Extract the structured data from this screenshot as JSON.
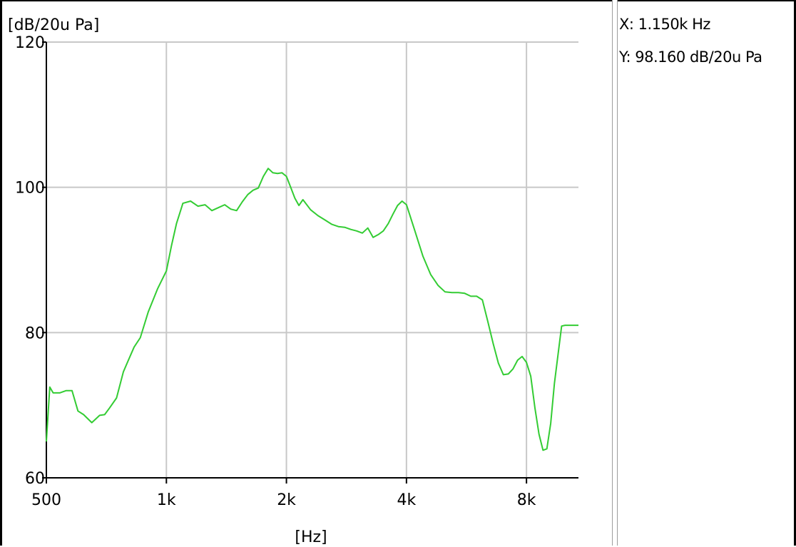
{
  "readout": {
    "x_text": "X: 1.150k Hz",
    "y_text": "Y: 98.160 dB/20u Pa"
  },
  "chart_data": {
    "type": "line",
    "title": "",
    "xlabel": "[Hz]",
    "ylabel": "[dB/20u Pa]",
    "xscale": "log",
    "xlim": [
      500,
      10800
    ],
    "ylim": [
      60,
      120
    ],
    "grid": true,
    "line_color": "#33cc33",
    "grid_color": "#c8c8c8",
    "xticks": [
      {
        "value": 500,
        "label": "500"
      },
      {
        "value": 1000,
        "label": "1k"
      },
      {
        "value": 2000,
        "label": "2k"
      },
      {
        "value": 4000,
        "label": "4k"
      },
      {
        "value": 8000,
        "label": "8k"
      }
    ],
    "yticks": [
      {
        "value": 60,
        "label": "60"
      },
      {
        "value": 80,
        "label": "80"
      },
      {
        "value": 100,
        "label": "100"
      },
      {
        "value": 120,
        "label": "120"
      }
    ],
    "series": [
      {
        "x": [
          500,
          510,
          520,
          540,
          560,
          580,
          600,
          620,
          650,
          680,
          700,
          720,
          750,
          780,
          800,
          830,
          860,
          900,
          950,
          1000,
          1030,
          1060,
          1100,
          1150,
          1200,
          1250,
          1300,
          1350,
          1400,
          1450,
          1500,
          1550,
          1600,
          1650,
          1700,
          1750,
          1800,
          1850,
          1900,
          1950,
          2000,
          2050,
          2100,
          2150,
          2200,
          2300,
          2400,
          2500,
          2600,
          2700,
          2800,
          2900,
          3000,
          3100,
          3200,
          3300,
          3400,
          3500,
          3600,
          3700,
          3800,
          3900,
          4000,
          4200,
          4400,
          4600,
          4800,
          5000,
          5200,
          5400,
          5600,
          5800,
          6000,
          6200,
          6400,
          6600,
          6800,
          7000,
          7200,
          7400,
          7600,
          7800,
          8000,
          8200,
          8400,
          8600,
          8800,
          9000,
          9200,
          9400,
          9600,
          9800,
          10000,
          10300,
          10600,
          10800
        ],
        "y": [
          65,
          72.5,
          71.7,
          71.7,
          72.0,
          72.0,
          69.2,
          68.7,
          67.6,
          68.6,
          68.7,
          69.6,
          71.0,
          74.6,
          76.0,
          78.0,
          79.3,
          82.8,
          86.0,
          88.5,
          92.0,
          95.0,
          97.8,
          98.1,
          97.4,
          97.6,
          96.8,
          97.2,
          97.6,
          97.0,
          96.8,
          98.0,
          99.0,
          99.6,
          99.9,
          101.5,
          102.6,
          102.0,
          101.9,
          102.0,
          101.5,
          100.0,
          98.5,
          97.5,
          98.3,
          96.9,
          96.1,
          95.5,
          94.9,
          94.6,
          94.5,
          94.2,
          94.0,
          93.7,
          94.4,
          93.1,
          93.5,
          94.0,
          95.0,
          96.3,
          97.5,
          98.1,
          97.6,
          94.0,
          90.5,
          88.0,
          86.5,
          85.6,
          85.5,
          85.5,
          85.4,
          85.0,
          85.0,
          84.5,
          81.5,
          78.5,
          75.8,
          74.2,
          74.3,
          75.0,
          76.2,
          76.7,
          75.9,
          74.0,
          69.6,
          66.0,
          63.8,
          64.0,
          67.5,
          73.0,
          77.0,
          80.9,
          81.0,
          81.0,
          81.0,
          81.0
        ]
      }
    ]
  }
}
